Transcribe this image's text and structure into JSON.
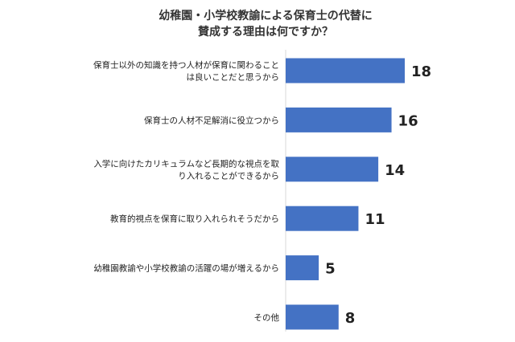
{
  "chart_data": {
    "type": "bar",
    "orientation": "horizontal",
    "title_lines": [
      "幼稚園・小学校教諭による保育士の代替に",
      "賛成する理由は何ですか？"
    ],
    "categories": [
      [
        "保育士以外の知識を持つ人材が保育に関わること",
        "は良いことだと思うから"
      ],
      [
        "保育士の人材不足解消に役立つから"
      ],
      [
        "入学に向けたカリキュラムなど長期的な視点を取",
        "り入れることができるから"
      ],
      [
        "教育的視点を保育に取り入れられそうだから"
      ],
      [
        "幼稚園教諭や小学校教諭の活躍の場が増えるから"
      ],
      [
        "その他"
      ]
    ],
    "values": [
      18,
      16,
      14,
      11,
      5,
      8
    ],
    "xlim": [
      0,
      18
    ],
    "grid": false,
    "legend": "none",
    "bar_color": "#4472C4"
  }
}
